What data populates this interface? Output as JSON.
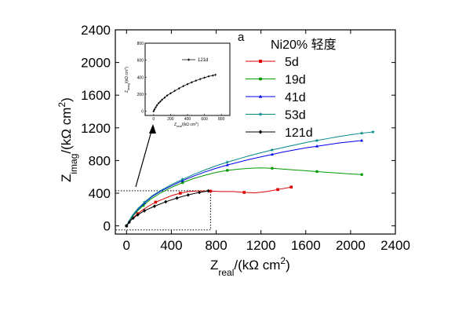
{
  "chart_data": {
    "type": "line",
    "panel_label": "a",
    "legend_title": "Ni20% 轻度",
    "legend_position": "top-right",
    "xlabel": {
      "main": "Z",
      "sub": "real",
      "unit": "/(kΩ cm",
      "sup": "2",
      "close": ")"
    },
    "ylabel": {
      "main": "Z",
      "sub": "imag",
      "unit": "/(kΩ cm",
      "sup": "2",
      "close": ")"
    },
    "xlim": [
      -100,
      2400
    ],
    "ylim": [
      -100,
      2400
    ],
    "x_ticks": [
      "0",
      "400",
      "800",
      "1200",
      "1600",
      "2000",
      "2400"
    ],
    "y_ticks": [
      "0",
      "400",
      "800",
      "1200",
      "1600",
      "2000",
      "2400"
    ],
    "series": [
      {
        "name": "5d",
        "color": "#dd0000",
        "marker": "square",
        "points": [
          [
            0,
            0
          ],
          [
            20,
            40
          ],
          [
            50,
            90
          ],
          [
            100,
            150
          ],
          [
            150,
            200
          ],
          [
            200,
            245
          ],
          [
            260,
            290
          ],
          [
            330,
            330
          ],
          [
            400,
            370
          ],
          [
            480,
            400
          ],
          [
            550,
            420
          ],
          [
            650,
            428
          ],
          [
            750,
            425
          ],
          [
            850,
            420
          ],
          [
            950,
            420
          ],
          [
            1050,
            410
          ],
          [
            1150,
            405
          ],
          [
            1250,
            420
          ],
          [
            1350,
            445
          ],
          [
            1470,
            475
          ]
        ]
      },
      {
        "name": "19d",
        "color": "#009900",
        "marker": "circle",
        "points": [
          [
            0,
            0
          ],
          [
            20,
            50
          ],
          [
            50,
            110
          ],
          [
            100,
            185
          ],
          [
            150,
            250
          ],
          [
            220,
            330
          ],
          [
            300,
            400
          ],
          [
            400,
            470
          ],
          [
            500,
            530
          ],
          [
            600,
            580
          ],
          [
            700,
            620
          ],
          [
            800,
            655
          ],
          [
            900,
            680
          ],
          [
            1000,
            695
          ],
          [
            1100,
            705
          ],
          [
            1200,
            710
          ],
          [
            1300,
            705
          ],
          [
            1400,
            695
          ],
          [
            1500,
            685
          ],
          [
            1600,
            675
          ],
          [
            1700,
            665
          ],
          [
            1800,
            655
          ],
          [
            1900,
            645
          ],
          [
            2000,
            635
          ],
          [
            2100,
            628
          ]
        ]
      },
      {
        "name": "41d",
        "color": "#0000ee",
        "marker": "triangle",
        "points": [
          [
            0,
            0
          ],
          [
            20,
            55
          ],
          [
            50,
            120
          ],
          [
            100,
            200
          ],
          [
            160,
            280
          ],
          [
            230,
            360
          ],
          [
            300,
            420
          ],
          [
            400,
            490
          ],
          [
            500,
            555
          ],
          [
            600,
            610
          ],
          [
            700,
            660
          ],
          [
            800,
            705
          ],
          [
            900,
            745
          ],
          [
            1000,
            780
          ],
          [
            1100,
            815
          ],
          [
            1200,
            845
          ],
          [
            1300,
            875
          ],
          [
            1400,
            905
          ],
          [
            1500,
            930
          ],
          [
            1600,
            955
          ],
          [
            1700,
            975
          ],
          [
            1800,
            995
          ],
          [
            1900,
            1015
          ],
          [
            2000,
            1030
          ],
          [
            2100,
            1045
          ]
        ]
      },
      {
        "name": "53d",
        "color": "#008888",
        "marker": "star",
        "points": [
          [
            0,
            0
          ],
          [
            20,
            55
          ],
          [
            50,
            125
          ],
          [
            100,
            210
          ],
          [
            160,
            290
          ],
          [
            230,
            370
          ],
          [
            300,
            430
          ],
          [
            400,
            505
          ],
          [
            500,
            570
          ],
          [
            600,
            630
          ],
          [
            700,
            685
          ],
          [
            800,
            735
          ],
          [
            900,
            780
          ],
          [
            1000,
            820
          ],
          [
            1100,
            860
          ],
          [
            1200,
            895
          ],
          [
            1300,
            930
          ],
          [
            1400,
            960
          ],
          [
            1500,
            990
          ],
          [
            1600,
            1020
          ],
          [
            1700,
            1045
          ],
          [
            1800,
            1070
          ],
          [
            1900,
            1095
          ],
          [
            2000,
            1115
          ],
          [
            2100,
            1135
          ],
          [
            2200,
            1150
          ]
        ]
      },
      {
        "name": "121d",
        "color": "#000000",
        "marker": "diamond",
        "points": [
          [
            0,
            0
          ],
          [
            10,
            20
          ],
          [
            25,
            45
          ],
          [
            40,
            70
          ],
          [
            60,
            95
          ],
          [
            80,
            115
          ],
          [
            100,
            135
          ],
          [
            130,
            160
          ],
          [
            160,
            185
          ],
          [
            200,
            210
          ],
          [
            250,
            240
          ],
          [
            300,
            268
          ],
          [
            350,
            295
          ],
          [
            400,
            318
          ],
          [
            450,
            340
          ],
          [
            500,
            360
          ],
          [
            550,
            378
          ],
          [
            600,
            395
          ],
          [
            650,
            410
          ],
          [
            700,
            420
          ],
          [
            730,
            428
          ]
        ]
      }
    ],
    "inset": {
      "legend": "121d",
      "xlabel": {
        "main": "Z",
        "sub": "real",
        "unit": "/(kΩ cm",
        "sup": "2",
        "close": ")"
      },
      "ylabel": {
        "main": "Z",
        "sub": "imag",
        "unit": "/(kΩ cm",
        "sup": "2",
        "close": ")"
      },
      "xlim": [
        -100,
        900
      ],
      "ylim": [
        -50,
        800
      ],
      "x_ticks": [
        "0",
        "200",
        "400",
        "600",
        "800"
      ],
      "y_ticks": [
        "0",
        "200",
        "400",
        "600",
        "800"
      ],
      "series_name": "121d",
      "zoom_region": {
        "x": [
          -100,
          750
        ],
        "y": [
          -50,
          430
        ]
      }
    }
  }
}
